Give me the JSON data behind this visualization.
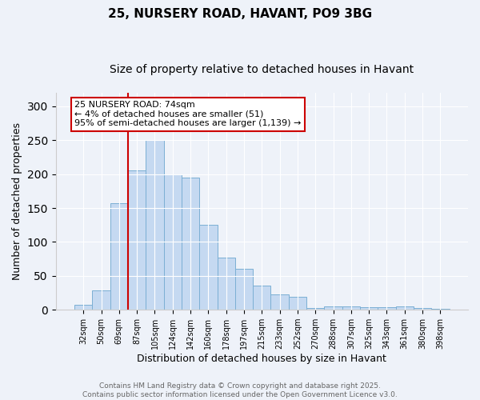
{
  "title": "25, NURSERY ROAD, HAVANT, PO9 3BG",
  "subtitle": "Size of property relative to detached houses in Havant",
  "xlabel": "Distribution of detached houses by size in Havant",
  "ylabel": "Number of detached properties",
  "categories": [
    "32sqm",
    "50sqm",
    "69sqm",
    "87sqm",
    "105sqm",
    "124sqm",
    "142sqm",
    "160sqm",
    "178sqm",
    "197sqm",
    "215sqm",
    "233sqm",
    "252sqm",
    "270sqm",
    "288sqm",
    "307sqm",
    "325sqm",
    "343sqm",
    "361sqm",
    "380sqm",
    "398sqm"
  ],
  "values": [
    7,
    28,
    157,
    205,
    250,
    200,
    195,
    125,
    77,
    61,
    36,
    23,
    19,
    3,
    5,
    5,
    4,
    4,
    5,
    3,
    2
  ],
  "bar_color": "#c5d9f1",
  "bar_edge_color": "#7bafd4",
  "red_line_x": 2.5,
  "annotation_text": "25 NURSERY ROAD: 74sqm\n← 4% of detached houses are smaller (51)\n95% of semi-detached houses are larger (1,139) →",
  "annotation_box_color": "#ffffff",
  "annotation_box_edge_color": "#cc0000",
  "red_line_color": "#cc0000",
  "ylim": [
    0,
    320
  ],
  "yticks": [
    0,
    50,
    100,
    150,
    200,
    250,
    300
  ],
  "background_color": "#eef2f9",
  "footer_text": "Contains HM Land Registry data © Crown copyright and database right 2025.\nContains public sector information licensed under the Open Government Licence v3.0.",
  "title_fontsize": 11,
  "subtitle_fontsize": 10,
  "xlabel_fontsize": 9,
  "ylabel_fontsize": 9,
  "footer_fontsize": 6.5,
  "annotation_fontsize": 8,
  "tick_fontsize": 7
}
